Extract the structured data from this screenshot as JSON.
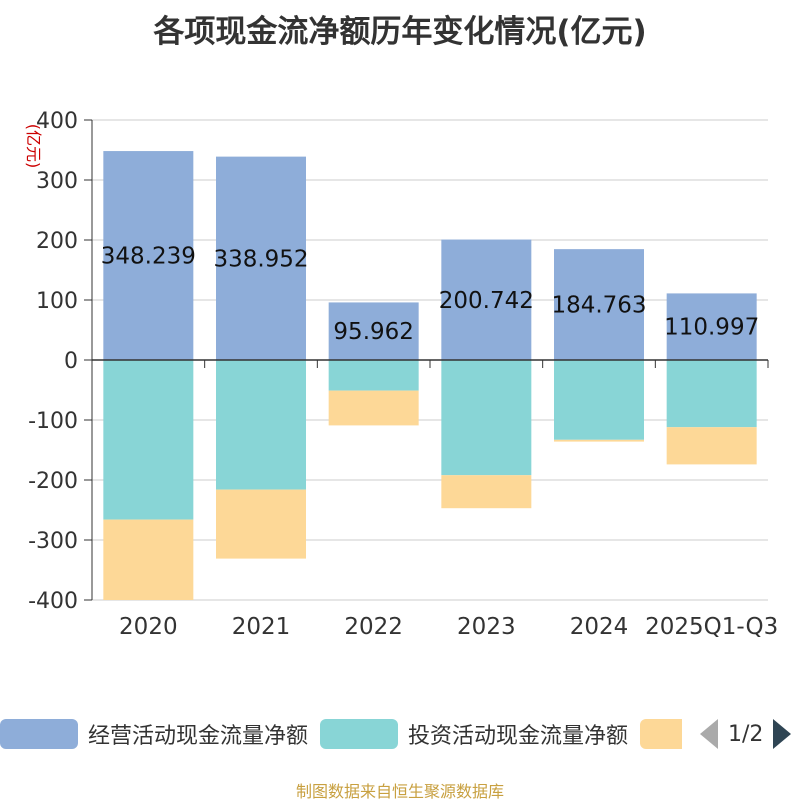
{
  "title": "各项现金流净额历年变化情况(亿元)",
  "source": "制图数据来自恒生聚源数据库",
  "chart_data": {
    "type": "bar",
    "stacked": true,
    "title": "各项现金流净额历年变化情况(亿元)",
    "ylabel": "(亿元)",
    "ylim": [
      -400,
      400
    ],
    "yticks": [
      400,
      300,
      200,
      100,
      0,
      -100,
      -200,
      -300,
      -400
    ],
    "categories": [
      "2020",
      "2021",
      "2022",
      "2023",
      "2024",
      "2025Q1-Q3"
    ],
    "series": [
      {
        "name": "经营活动现金流量净额",
        "color": "#8eadd9",
        "values": [
          348.239,
          338.952,
          95.962,
          200.742,
          184.763,
          110.997
        ],
        "labels": [
          "348.239",
          "338.952",
          "95.962",
          "200.742",
          "184.763",
          "110.997"
        ]
      },
      {
        "name": "投资活动现金流量净额",
        "color": "#88d5d6",
        "values": [
          -266,
          -216,
          -51,
          -192,
          -133,
          -112
        ]
      },
      {
        "name": "",
        "color": "#fdd897",
        "values": [
          -134,
          -115,
          -58,
          -55,
          -3,
          -62
        ]
      }
    ],
    "legend": {
      "position": "bottom",
      "page": "1/2",
      "items": [
        "经营活动现金流量净额",
        "投资活动现金流量净额",
        ""
      ]
    }
  }
}
